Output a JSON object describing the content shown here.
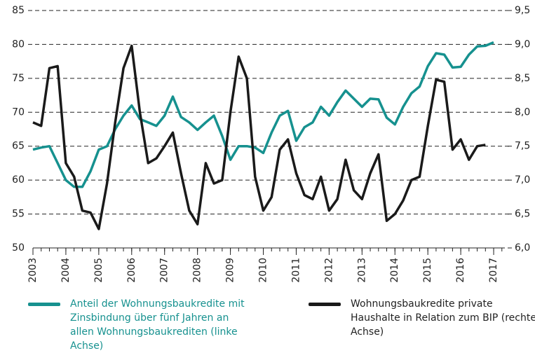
{
  "chart_data": {
    "type": "line",
    "xlim": [
      2003,
      2017.34
    ],
    "xticks": [
      2003,
      2004,
      2005,
      2006,
      2007,
      2008,
      2009,
      2010,
      2011,
      2012,
      2013,
      2014,
      2015,
      2016,
      2017
    ],
    "ylim": [
      50,
      85
    ],
    "yticks": [
      50,
      55,
      60,
      65,
      70,
      75,
      80,
      85
    ],
    "y2lim": [
      6.0,
      9.5
    ],
    "y2ticks": [
      {
        "value": 6.0,
        "label": "6,0"
      },
      {
        "value": 6.5,
        "label": "6,5"
      },
      {
        "value": 7.0,
        "label": "7,0"
      },
      {
        "value": 7.5,
        "label": "7,5"
      },
      {
        "value": 8.0,
        "label": "8,0"
      },
      {
        "value": 8.5,
        "label": "8,5"
      },
      {
        "value": 9.0,
        "label": "9,0"
      },
      {
        "value": 9.5,
        "label": "9,5"
      }
    ],
    "grid": true,
    "series": [
      {
        "name": "Anteil der Wohnungsbaukredite mit Zinsbindung über fünf Jahren an allen Wohnungsbaukrediten (linke Achse)",
        "color": "#16918f",
        "axis": "y",
        "x": [
          2003.0,
          2003.25,
          2003.5,
          2003.75,
          2004.0,
          2004.25,
          2004.5,
          2004.75,
          2005.0,
          2005.25,
          2005.5,
          2005.75,
          2006.0,
          2006.25,
          2006.5,
          2006.75,
          2007.0,
          2007.25,
          2007.5,
          2007.75,
          2008.0,
          2008.25,
          2008.5,
          2008.75,
          2009.0,
          2009.25,
          2009.5,
          2009.75,
          2010.0,
          2010.25,
          2010.5,
          2010.75,
          2011.0,
          2011.25,
          2011.5,
          2011.75,
          2012.0,
          2012.25,
          2012.5,
          2012.75,
          2013.0,
          2013.25,
          2013.5,
          2013.75,
          2014.0,
          2014.25,
          2014.5,
          2014.75,
          2015.0,
          2015.25,
          2015.5,
          2015.75,
          2016.0,
          2016.25,
          2016.5,
          2016.75,
          2017.0
        ],
        "values": [
          64.5,
          64.8,
          65,
          62.5,
          60,
          59,
          59,
          61.3,
          64.5,
          65,
          67.5,
          69.5,
          71,
          69,
          68.5,
          68,
          69.5,
          72.3,
          69.3,
          68.5,
          67.4,
          68.5,
          69.5,
          66.5,
          63,
          65,
          65,
          64.8,
          64,
          67,
          69.5,
          70.2,
          65.8,
          67.8,
          68.5,
          70.8,
          69.5,
          71.5,
          73.2,
          72,
          70.8,
          72,
          71.9,
          69.2,
          68.2,
          70.8,
          72.8,
          73.8,
          76.8,
          78.7,
          78.5,
          76.6,
          76.7,
          78.5,
          79.7,
          79.8,
          80.3
        ]
      },
      {
        "name": "Wohnungsbaukredite private Haushalte in Relation zum BIP (rechte Achse)",
        "color": "#1a1a1a",
        "axis": "y2",
        "x": [
          2003.0,
          2003.25,
          2003.5,
          2003.75,
          2004.0,
          2004.25,
          2004.5,
          2004.75,
          2005.0,
          2005.25,
          2005.5,
          2005.75,
          2006.0,
          2006.25,
          2006.5,
          2006.75,
          2007.0,
          2007.25,
          2007.5,
          2007.75,
          2008.0,
          2008.25,
          2008.5,
          2008.75,
          2009.0,
          2009.25,
          2009.5,
          2009.75,
          2010.0,
          2010.25,
          2010.5,
          2010.75,
          2011.0,
          2011.25,
          2011.5,
          2011.75,
          2012.0,
          2012.25,
          2012.5,
          2012.75,
          2013.0,
          2013.25,
          2013.5,
          2013.75,
          2014.0,
          2014.25,
          2014.5,
          2014.75,
          2015.0,
          2015.25,
          2015.5,
          2015.75,
          2016.0,
          2016.25,
          2016.5,
          2016.75
        ],
        "values": [
          7.85,
          7.8,
          8.65,
          8.68,
          7.25,
          7.05,
          6.55,
          6.52,
          6.28,
          6.95,
          7.85,
          8.65,
          8.98,
          8.0,
          7.25,
          7.32,
          7.5,
          7.7,
          7.1,
          6.55,
          6.35,
          7.25,
          6.95,
          7.0,
          8.0,
          8.82,
          8.5,
          7.05,
          6.55,
          6.75,
          7.45,
          7.6,
          7.1,
          6.78,
          6.72,
          7.05,
          6.55,
          6.72,
          7.3,
          6.85,
          6.72,
          7.1,
          7.38,
          6.4,
          6.5,
          6.7,
          7.0,
          7.05,
          7.8,
          8.48,
          8.45,
          7.45,
          7.6,
          7.3,
          7.5,
          7.52
        ]
      }
    ]
  }
}
